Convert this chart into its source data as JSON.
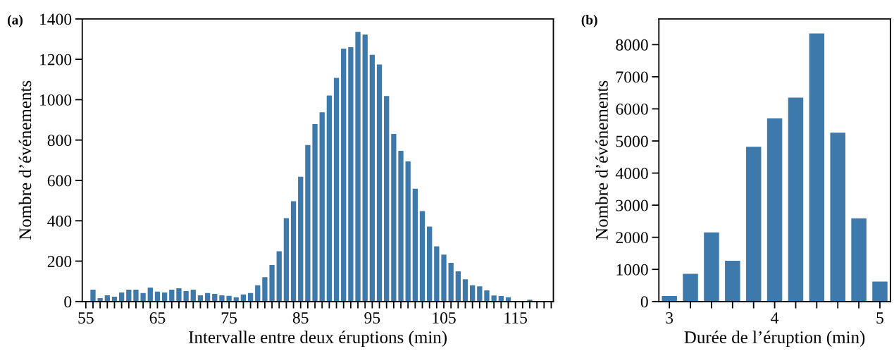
{
  "chart_data": [
    {
      "type": "histogram",
      "xlabel": "Intervalle entre deux éruptions (min)",
      "ylabel": "Nombre d’événements",
      "color": "#3d79ab",
      "annotations": [
        "(a)"
      ],
      "bins": [
        55.5,
        56.5,
        57.5,
        58.5,
        59.5,
        60.5,
        61.5,
        62.5,
        63.5,
        64.5,
        65.5,
        66.5,
        67.5,
        68.5,
        69.5,
        70.5,
        71.5,
        72.5,
        73.5,
        74.5,
        75.5,
        76.5,
        77.5,
        78.5,
        79.5,
        80.5,
        81.5,
        82.5,
        83.5,
        84.5,
        85.5,
        86.5,
        87.5,
        88.5,
        89.5,
        90.5,
        91.5,
        92.5,
        93.5,
        94.5,
        95.5,
        96.5,
        97.5,
        98.5,
        99.5,
        100.5,
        101.5,
        102.5,
        103.5,
        104.5,
        105.5,
        106.5,
        107.5,
        108.5,
        109.5,
        110.5,
        111.5,
        112.5,
        113.5,
        114.5,
        115.5,
        116.5,
        117.5
      ],
      "values": [
        59,
        17,
        31,
        24,
        45,
        59,
        59,
        42,
        69,
        49,
        45,
        59,
        66,
        52,
        59,
        31,
        42,
        38,
        31,
        28,
        21,
        35,
        42,
        80,
        121,
        181,
        249,
        413,
        497,
        618,
        775,
        879,
        938,
        1021,
        1108,
        1253,
        1260,
        1336,
        1323,
        1222,
        1174,
        1018,
        830,
        747,
        694,
        559,
        448,
        371,
        273,
        232,
        191,
        149,
        110,
        80,
        75,
        55,
        30,
        27,
        21,
        0,
        0,
        9
      ],
      "xlim": [
        54.5,
        120.3
      ],
      "xticks": [
        55,
        {
          "value": 56,
          "label": null
        },
        {
          "value": 57,
          "label": null
        },
        {
          "value": 58,
          "label": null
        },
        {
          "value": 59,
          "label": null
        },
        {
          "value": 60,
          "label": null
        },
        {
          "value": 61,
          "label": null
        },
        {
          "value": 62,
          "label": null
        },
        {
          "value": 63,
          "label": null
        },
        {
          "value": 64,
          "label": null
        },
        65,
        {
          "value": 66,
          "label": null
        },
        {
          "value": 67,
          "label": null
        },
        {
          "value": 68,
          "label": null
        },
        {
          "value": 69,
          "label": null
        },
        {
          "value": 70,
          "label": null
        },
        {
          "value": 71,
          "label": null
        },
        {
          "value": 72,
          "label": null
        },
        {
          "value": 73,
          "label": null
        },
        {
          "value": 74,
          "label": null
        },
        75,
        {
          "value": 76,
          "label": null
        },
        {
          "value": 77,
          "label": null
        },
        {
          "value": 78,
          "label": null
        },
        {
          "value": 79,
          "label": null
        },
        {
          "value": 80,
          "label": null
        },
        {
          "value": 81,
          "label": null
        },
        {
          "value": 82,
          "label": null
        },
        {
          "value": 83,
          "label": null
        },
        {
          "value": 84,
          "label": null
        },
        85,
        {
          "value": 86,
          "label": null
        },
        {
          "value": 87,
          "label": null
        },
        {
          "value": 88,
          "label": null
        },
        {
          "value": 89,
          "label": null
        },
        {
          "value": 90,
          "label": null
        },
        {
          "value": 91,
          "label": null
        },
        {
          "value": 92,
          "label": null
        },
        {
          "value": 93,
          "label": null
        },
        {
          "value": 94,
          "label": null
        },
        95,
        {
          "value": 96,
          "label": null
        },
        {
          "value": 97,
          "label": null
        },
        {
          "value": 98,
          "label": null
        },
        {
          "value": 99,
          "label": null
        },
        {
          "value": 100,
          "label": null
        },
        {
          "value": 101,
          "label": null
        },
        {
          "value": 102,
          "label": null
        },
        {
          "value": 103,
          "label": null
        },
        {
          "value": 104,
          "label": null
        },
        105,
        {
          "value": 106,
          "label": null
        },
        {
          "value": 107,
          "label": null
        },
        {
          "value": 108,
          "label": null
        },
        {
          "value": 109,
          "label": null
        },
        {
          "value": 110,
          "label": null
        },
        {
          "value": 111,
          "label": null
        },
        {
          "value": 112,
          "label": null
        },
        {
          "value": 113,
          "label": null
        },
        {
          "value": 114,
          "label": null
        },
        115,
        {
          "value": 116,
          "label": null
        },
        {
          "value": 117,
          "label": null
        },
        {
          "value": 118,
          "label": null
        },
        {
          "value": 119,
          "label": null
        },
        {
          "value": 120,
          "label": null
        }
      ],
      "ylim": [
        0,
        1400
      ],
      "yticks": [
        0,
        200,
        400,
        600,
        800,
        1000,
        1200,
        1400
      ],
      "grid": false,
      "legend": false
    },
    {
      "type": "histogram",
      "xlabel": "Durée de l’éruption (min)",
      "ylabel": "Nombre d’événements",
      "color": "#3d79ab",
      "annotations": [
        "(b)"
      ],
      "bins": [
        2.9,
        3.1,
        3.3,
        3.5,
        3.7,
        3.9,
        4.1,
        4.3,
        4.5,
        4.7,
        4.9,
        5.1
      ],
      "values": [
        170,
        860,
        2150,
        1270,
        4820,
        5700,
        6350,
        8350,
        5260,
        2590,
        620
      ],
      "xlim": [
        2.9,
        5.1
      ],
      "xticks": [
        3,
        {
          "value": 3.2,
          "label": null
        },
        {
          "value": 3.4,
          "label": null
        },
        {
          "value": 3.6,
          "label": null
        },
        {
          "value": 3.8,
          "label": null
        },
        4,
        {
          "value": 4.2,
          "label": null
        },
        {
          "value": 4.4,
          "label": null
        },
        {
          "value": 4.6,
          "label": null
        },
        {
          "value": 4.8,
          "label": null
        },
        5
      ],
      "ylim": [
        0,
        8800
      ],
      "yticks": [
        0,
        1000,
        2000,
        3000,
        4000,
        5000,
        6000,
        7000,
        8000
      ],
      "grid": false,
      "legend": false
    }
  ]
}
